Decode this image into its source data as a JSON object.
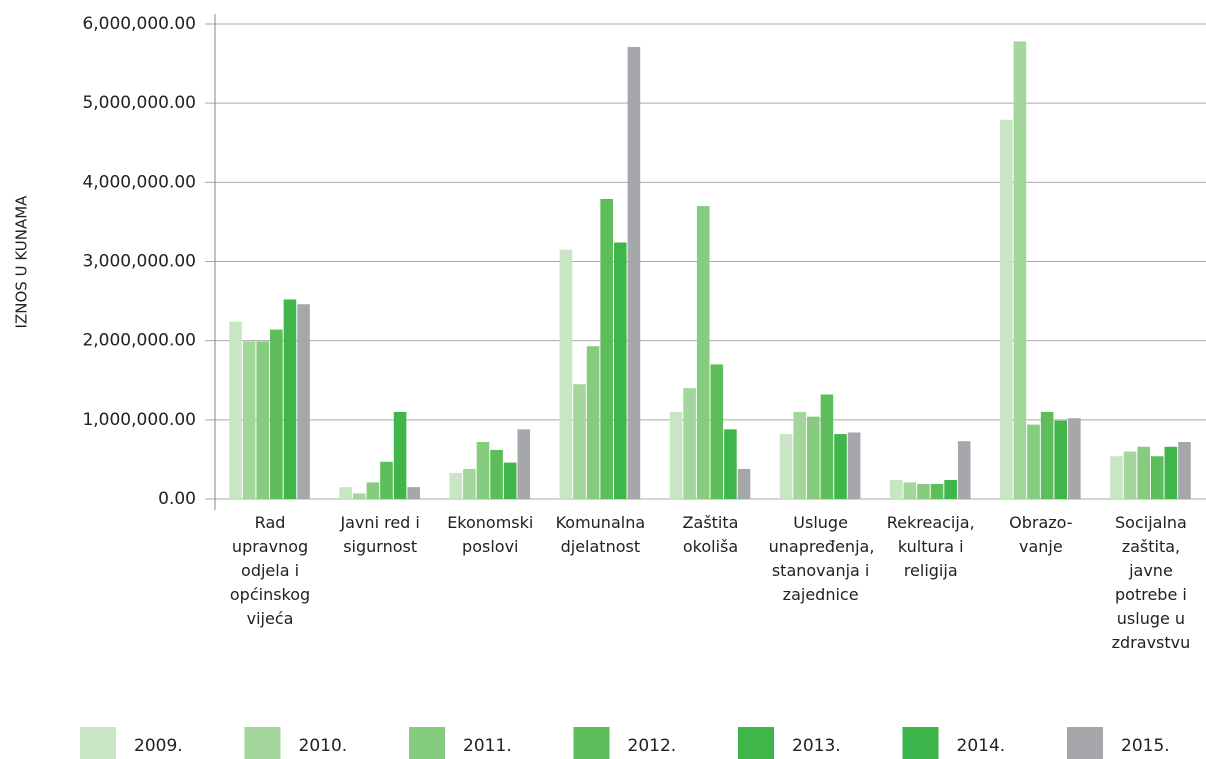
{
  "chart_data": {
    "type": "bar",
    "y_axis_label": "IZNOS U KUNAMA",
    "categories": [
      "Rad upravnog odjela i općinskog vijeća",
      "Javni red i sigurnost",
      "Ekonomski poslovi",
      "Komunalna djelatnost",
      "Zaštita okoliša",
      "Usluge unapređenja, stanovanja i zajednice",
      "Rekreacija, kultura i religija",
      "Obrazo-vanje",
      "Socijalna zaštita, javne potrebe i usluge u zdravstvu"
    ],
    "series": [
      {
        "name": "2009.",
        "color": "#c8e6c4",
        "values": [
          2240000,
          150000,
          330000,
          3150000,
          1100000,
          820000,
          240000,
          4790000,
          540000
        ]
      },
      {
        "name": "2010.",
        "color": "#a3d69b",
        "values": [
          1990000,
          70000,
          380000,
          1450000,
          1400000,
          1100000,
          210000,
          5780000,
          600000
        ]
      },
      {
        "name": "2011.",
        "color": "#86cc7f",
        "values": [
          1990000,
          210000,
          720000,
          1930000,
          3700000,
          1040000,
          190000,
          940000,
          660000
        ]
      },
      {
        "name": "2012.",
        "color": "#5dbd5a",
        "values": [
          2140000,
          470000,
          620000,
          3790000,
          1700000,
          1320000,
          190000,
          1100000,
          540000
        ]
      },
      {
        "name": "2013.",
        "color": "#3fb54a",
        "values": [
          2520000,
          1100000,
          460000,
          3240000,
          880000,
          820000,
          240000,
          990000,
          660000
        ]
      },
      {
        "name": "2014.",
        "color": "#3cb54a",
        "values": [
          null,
          null,
          null,
          null,
          null,
          null,
          null,
          null,
          null
        ]
      },
      {
        "name": "2015.",
        "color": "#a6a7aa",
        "values": [
          2460000,
          150000,
          880000,
          5710000,
          380000,
          840000,
          730000,
          1020000,
          720000
        ]
      }
    ],
    "ylim": [
      0,
      6000000
    ],
    "yticks": [
      {
        "value": 0,
        "label": "0.00"
      },
      {
        "value": 1000000,
        "label": "1,000,000.00"
      },
      {
        "value": 2000000,
        "label": "2,000,000.00"
      },
      {
        "value": 3000000,
        "label": "3,000,000.00"
      },
      {
        "value": 4000000,
        "label": "4,000,000.00"
      },
      {
        "value": 5000000,
        "label": "5,000,000.00"
      },
      {
        "value": 6000000,
        "label": "6,000,000.00"
      }
    ],
    "grid": true
  }
}
